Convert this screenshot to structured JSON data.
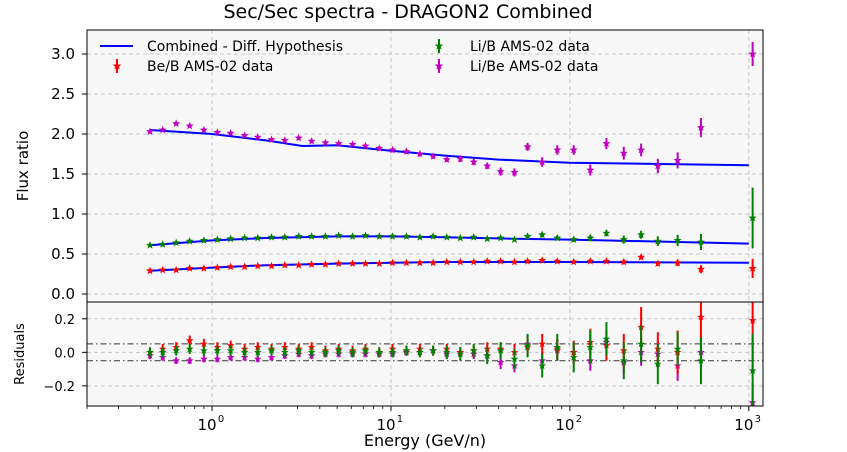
{
  "chart_data": {
    "type": "scatter",
    "title": "Sec/Sec spectra - DRAGON2 Combined",
    "xlabel": "Energy (GeV/n)",
    "xscale": "log",
    "xlim": [
      0.2,
      1200
    ],
    "x_ticks": [
      1,
      10,
      100,
      1000
    ],
    "x_tick_labels": [
      "10",
      "10",
      "10",
      "10"
    ],
    "x_tick_exponents": [
      "0",
      "1",
      "2",
      "3"
    ],
    "grid": true,
    "legend_position": "top",
    "colors": {
      "model": "#0000ff",
      "beb": "#ff0000",
      "lib": "#008000",
      "libe": "#bf00bf",
      "axes_bg": "#f7f7f7"
    },
    "top_panel": {
      "ylabel": "Flux ratio",
      "ylim": [
        -0.1,
        3.3
      ],
      "y_ticks": [
        0.0,
        0.5,
        1.0,
        1.5,
        2.0,
        2.5,
        3.0
      ],
      "y_tick_labels": [
        "0.0",
        "0.5",
        "1.0",
        "1.5",
        "2.0",
        "2.5",
        "3.0"
      ],
      "legend": [
        {
          "label": "Combined - Diff. Hypothesis",
          "kind": "line",
          "color": "#0000ff"
        },
        {
          "label": "Be/B AMS-02 data",
          "kind": "marker",
          "color": "#ff0000"
        },
        {
          "label": "Li/B AMS-02 data",
          "kind": "marker",
          "color": "#008000"
        },
        {
          "label": "Li/Be AMS-02 data",
          "kind": "marker",
          "color": "#bf00bf"
        }
      ]
    },
    "bottom_panel": {
      "ylabel": "Residuals",
      "ylim": [
        -0.32,
        0.3
      ],
      "y_ticks": [
        -0.2,
        0.0,
        0.2
      ],
      "y_tick_labels": [
        "−0.2",
        "0.0",
        "0.2"
      ],
      "reference_lines": [
        0.05,
        -0.05
      ]
    },
    "series": [
      {
        "name": "Combined - Diff. Hypothesis",
        "color": "#0000ff",
        "curves": [
          {
            "x": [
              0.45,
              1,
              2,
              3.2,
              5,
              10,
              20,
              40,
              100,
              1000
            ],
            "y": [
              2.05,
              2.0,
              1.92,
              1.85,
              1.86,
              1.79,
              1.73,
              1.68,
              1.64,
              1.61
            ]
          },
          {
            "x": [
              0.45,
              1,
              2,
              5,
              10,
              20,
              50,
              100,
              1000
            ],
            "y": [
              0.61,
              0.67,
              0.7,
              0.72,
              0.72,
              0.71,
              0.69,
              0.68,
              0.63
            ]
          },
          {
            "x": [
              0.45,
              1,
              2,
              5,
              10,
              20,
              50,
              100,
              1000
            ],
            "y": [
              0.29,
              0.33,
              0.36,
              0.38,
              0.39,
              0.4,
              0.4,
              0.4,
              0.39
            ]
          }
        ]
      },
      {
        "name": "Be/B AMS-02 data",
        "color": "#ff0000",
        "x": [
          0.45,
          0.53,
          0.63,
          0.75,
          0.9,
          1.07,
          1.27,
          1.52,
          1.8,
          2.15,
          2.55,
          3.05,
          3.6,
          4.3,
          5.1,
          6.1,
          7.2,
          8.6,
          10.2,
          12.2,
          14.5,
          17.2,
          20.5,
          24.4,
          29,
          34.5,
          41,
          49,
          58,
          70,
          85,
          105,
          130,
          160,
          200,
          250,
          310,
          400,
          540,
          1050
        ],
        "y": [
          0.29,
          0.3,
          0.3,
          0.32,
          0.32,
          0.33,
          0.34,
          0.34,
          0.35,
          0.35,
          0.36,
          0.36,
          0.37,
          0.37,
          0.38,
          0.38,
          0.38,
          0.38,
          0.39,
          0.39,
          0.39,
          0.39,
          0.4,
          0.4,
          0.4,
          0.41,
          0.41,
          0.4,
          0.41,
          0.42,
          0.41,
          0.4,
          0.41,
          0.41,
          0.4,
          0.46,
          0.38,
          0.39,
          0.31,
          0.32
        ],
        "err": [
          0.01,
          0.01,
          0.01,
          0.01,
          0.01,
          0.01,
          0.01,
          0.01,
          0.01,
          0.01,
          0.01,
          0.01,
          0.01,
          0.01,
          0.01,
          0.01,
          0.01,
          0.01,
          0.01,
          0.01,
          0.01,
          0.01,
          0.01,
          0.01,
          0.01,
          0.01,
          0.01,
          0.01,
          0.02,
          0.02,
          0.02,
          0.02,
          0.02,
          0.02,
          0.03,
          0.03,
          0.03,
          0.04,
          0.05,
          0.12
        ],
        "residuals": [
          0.0,
          0.02,
          0.03,
          0.07,
          0.05,
          0.03,
          0.04,
          0.02,
          0.03,
          0.02,
          0.03,
          0.02,
          0.03,
          0.01,
          0.02,
          0.01,
          0.02,
          0.0,
          0.02,
          0.01,
          0.02,
          0.01,
          0.02,
          0.0,
          0.01,
          0.02,
          0.02,
          0.0,
          0.03,
          0.05,
          0.02,
          0.0,
          0.06,
          0.04,
          0.01,
          0.15,
          0.02,
          0.0,
          0.21,
          0.19
        ],
        "res_err": [
          0.03,
          0.03,
          0.03,
          0.03,
          0.03,
          0.03,
          0.03,
          0.03,
          0.03,
          0.03,
          0.03,
          0.03,
          0.03,
          0.03,
          0.03,
          0.03,
          0.03,
          0.03,
          0.03,
          0.03,
          0.03,
          0.03,
          0.03,
          0.03,
          0.03,
          0.04,
          0.04,
          0.05,
          0.05,
          0.06,
          0.06,
          0.07,
          0.08,
          0.09,
          0.1,
          0.12,
          0.1,
          0.13,
          0.15,
          0.3
        ]
      },
      {
        "name": "Li/B AMS-02 data",
        "color": "#008000",
        "x": [
          0.45,
          0.53,
          0.63,
          0.75,
          0.9,
          1.07,
          1.27,
          1.52,
          1.8,
          2.15,
          2.55,
          3.05,
          3.6,
          4.3,
          5.1,
          6.1,
          7.2,
          8.6,
          10.2,
          12.2,
          14.5,
          17.2,
          20.5,
          24.4,
          29,
          34.5,
          41,
          49,
          58,
          70,
          85,
          105,
          130,
          160,
          200,
          250,
          310,
          400,
          540,
          1050
        ],
        "y": [
          0.61,
          0.62,
          0.64,
          0.66,
          0.67,
          0.68,
          0.69,
          0.7,
          0.7,
          0.71,
          0.71,
          0.72,
          0.72,
          0.72,
          0.73,
          0.72,
          0.73,
          0.72,
          0.72,
          0.72,
          0.71,
          0.72,
          0.71,
          0.7,
          0.71,
          0.69,
          0.7,
          0.68,
          0.72,
          0.74,
          0.7,
          0.68,
          0.7,
          0.76,
          0.68,
          0.74,
          0.66,
          0.67,
          0.65,
          0.95
        ],
        "err": [
          0.01,
          0.01,
          0.01,
          0.01,
          0.01,
          0.01,
          0.01,
          0.01,
          0.01,
          0.01,
          0.01,
          0.01,
          0.01,
          0.01,
          0.01,
          0.01,
          0.01,
          0.01,
          0.01,
          0.01,
          0.01,
          0.01,
          0.01,
          0.02,
          0.02,
          0.02,
          0.02,
          0.02,
          0.03,
          0.03,
          0.03,
          0.03,
          0.04,
          0.04,
          0.05,
          0.05,
          0.06,
          0.07,
          0.1,
          0.38
        ],
        "residuals": [
          0.0,
          0.0,
          0.01,
          0.02,
          0.01,
          0.01,
          0.01,
          0.0,
          0.0,
          0.01,
          0.0,
          0.01,
          0.0,
          0.0,
          0.01,
          0.0,
          0.01,
          0.0,
          0.0,
          0.01,
          0.0,
          0.01,
          0.0,
          -0.01,
          0.01,
          -0.02,
          0.01,
          -0.04,
          0.04,
          -0.08,
          0.03,
          -0.03,
          0.03,
          0.08,
          -0.05,
          0.05,
          -0.07,
          0.02,
          -0.05,
          -0.11
        ],
        "res_err": [
          0.03,
          0.03,
          0.03,
          0.03,
          0.03,
          0.03,
          0.03,
          0.03,
          0.03,
          0.03,
          0.03,
          0.03,
          0.03,
          0.03,
          0.03,
          0.03,
          0.03,
          0.03,
          0.03,
          0.03,
          0.03,
          0.03,
          0.04,
          0.04,
          0.04,
          0.05,
          0.05,
          0.06,
          0.07,
          0.07,
          0.08,
          0.09,
          0.1,
          0.1,
          0.11,
          0.11,
          0.12,
          0.1,
          0.14,
          0.22
        ]
      },
      {
        "name": "Li/Be AMS-02 data",
        "color": "#bf00bf",
        "x": [
          0.45,
          0.53,
          0.63,
          0.75,
          0.9,
          1.07,
          1.27,
          1.52,
          1.8,
          2.15,
          2.55,
          3.05,
          3.6,
          4.3,
          5.1,
          6.1,
          7.2,
          8.6,
          10.2,
          12.2,
          14.5,
          17.2,
          20.5,
          24.4,
          29,
          34.5,
          41,
          49,
          58,
          70,
          85,
          105,
          130,
          160,
          200,
          250,
          310,
          400,
          540,
          1050
        ],
        "y": [
          2.03,
          2.05,
          2.13,
          2.1,
          2.05,
          2.02,
          2.01,
          1.98,
          1.96,
          1.93,
          1.92,
          1.95,
          1.91,
          1.89,
          1.88,
          1.87,
          1.85,
          1.82,
          1.8,
          1.78,
          1.75,
          1.72,
          1.68,
          1.69,
          1.65,
          1.6,
          1.53,
          1.52,
          1.84,
          1.65,
          1.8,
          1.8,
          1.55,
          1.88,
          1.76,
          1.8,
          1.6,
          1.67,
          2.08,
          3.0
        ],
        "err": [
          0.02,
          0.02,
          0.02,
          0.02,
          0.02,
          0.02,
          0.02,
          0.02,
          0.02,
          0.02,
          0.02,
          0.02,
          0.02,
          0.02,
          0.02,
          0.02,
          0.02,
          0.02,
          0.03,
          0.03,
          0.03,
          0.03,
          0.03,
          0.04,
          0.04,
          0.04,
          0.05,
          0.05,
          0.05,
          0.06,
          0.06,
          0.06,
          0.07,
          0.07,
          0.08,
          0.08,
          0.09,
          0.1,
          0.12,
          0.15
        ],
        "residuals": [
          -0.02,
          -0.03,
          -0.05,
          -0.05,
          -0.04,
          -0.04,
          -0.03,
          -0.03,
          -0.04,
          -0.03,
          -0.02,
          -0.01,
          -0.02,
          -0.01,
          -0.01,
          -0.01,
          -0.01,
          -0.01,
          -0.01,
          0.0,
          0.0,
          0.01,
          -0.01,
          0.0,
          -0.01,
          -0.02,
          -0.06,
          -0.08,
          0.05,
          -0.05,
          0.01,
          0.0,
          -0.05,
          0.06,
          -0.06,
          0.0,
          -0.01,
          -0.08,
          0.0,
          -0.3
        ],
        "res_err": [
          0.02,
          0.02,
          0.02,
          0.02,
          0.02,
          0.02,
          0.02,
          0.02,
          0.02,
          0.02,
          0.02,
          0.02,
          0.02,
          0.02,
          0.02,
          0.02,
          0.02,
          0.02,
          0.02,
          0.02,
          0.02,
          0.02,
          0.03,
          0.03,
          0.03,
          0.03,
          0.04,
          0.04,
          0.05,
          0.05,
          0.06,
          0.06,
          0.06,
          0.07,
          0.07,
          0.08,
          0.08,
          0.09,
          0.1,
          0.12
        ]
      }
    ]
  }
}
